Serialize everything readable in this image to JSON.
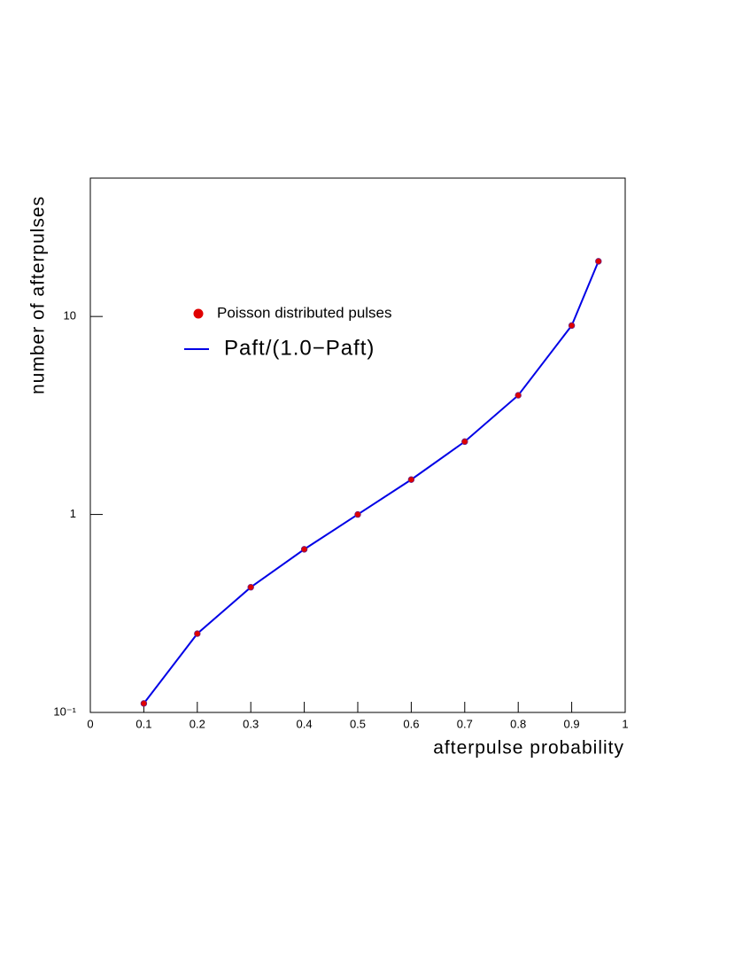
{
  "chart_data": {
    "type": "line",
    "x_label": "afterpulse probability",
    "y_label": "number of afterpulses",
    "x": [
      0.1,
      0.2,
      0.3,
      0.4,
      0.5,
      0.6,
      0.7,
      0.8,
      0.9,
      0.95
    ],
    "series": [
      {
        "name": "Poisson distributed pulses",
        "type": "scatter",
        "color": "#e00000",
        "values": [
          0.111,
          0.25,
          0.429,
          0.667,
          1,
          1.5,
          2.333,
          4,
          9,
          19
        ]
      },
      {
        "name": "Paft/(1.0−Paft)",
        "type": "line",
        "color": "#0000e6",
        "values": [
          0.111,
          0.25,
          0.429,
          0.667,
          1,
          1.5,
          2.333,
          4,
          9,
          19
        ]
      }
    ],
    "xlim": [
      0,
      1
    ],
    "xticks": [
      0,
      0.1,
      0.2,
      0.3,
      0.4,
      0.5,
      0.6,
      0.7,
      0.8,
      0.9,
      1
    ],
    "ylim": [
      0.1,
      50
    ],
    "y_log": true,
    "yticks": [
      {
        "value": 0.1,
        "label": "10⁻¹"
      },
      1,
      10
    ]
  }
}
